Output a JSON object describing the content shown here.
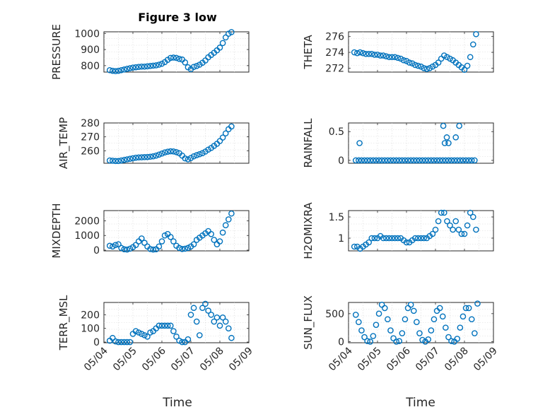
{
  "figure": {
    "title": "Figure 3 low",
    "xlabel": "Time",
    "x_tick_labels": [
      "05/04",
      "05/05",
      "05/06",
      "05/07",
      "05/08",
      "05/09"
    ],
    "marker_color": "#0072bd"
  },
  "chart_data": [
    {
      "type": "scatter",
      "name": "PRESSURE",
      "ylabel": "PRESSURE",
      "title": "Figure 3 low",
      "xlim": [
        0,
        5
      ],
      "ylim": [
        760,
        1010
      ],
      "yticks": [
        800,
        900,
        1000
      ],
      "ytick_labels": [
        "800",
        "900",
        "1000"
      ],
      "grid": true,
      "x": [
        0.2,
        0.3,
        0.4,
        0.5,
        0.6,
        0.7,
        0.8,
        0.9,
        1.0,
        1.1,
        1.2,
        1.3,
        1.4,
        1.5,
        1.6,
        1.7,
        1.8,
        1.9,
        2.0,
        2.1,
        2.2,
        2.3,
        2.4,
        2.5,
        2.6,
        2.7,
        2.8,
        2.9,
        3.0,
        3.1,
        3.2,
        3.3,
        3.4,
        3.5,
        3.6,
        3.7,
        3.8,
        3.9,
        4.0,
        4.1,
        4.2,
        4.3,
        4.4
      ],
      "y": [
        772,
        768,
        766,
        768,
        772,
        776,
        780,
        784,
        788,
        790,
        792,
        794,
        794,
        796,
        798,
        800,
        802,
        806,
        812,
        822,
        836,
        848,
        850,
        848,
        842,
        838,
        820,
        790,
        778,
        792,
        798,
        806,
        818,
        832,
        852,
        866,
        880,
        895,
        912,
        940,
        975,
        998,
        1008
      ]
    },
    {
      "type": "scatter",
      "name": "THETA",
      "ylabel": "THETA",
      "xlim": [
        0,
        5
      ],
      "ylim": [
        271.5,
        276.6
      ],
      "yticks": [
        272,
        274,
        276
      ],
      "ytick_labels": [
        "272",
        "274",
        "276"
      ],
      "grid": true,
      "x": [
        0.2,
        0.3,
        0.4,
        0.5,
        0.6,
        0.7,
        0.8,
        0.9,
        1.0,
        1.1,
        1.2,
        1.3,
        1.4,
        1.5,
        1.6,
        1.7,
        1.8,
        1.9,
        2.0,
        2.1,
        2.2,
        2.3,
        2.4,
        2.5,
        2.6,
        2.7,
        2.8,
        2.9,
        3.0,
        3.1,
        3.2,
        3.3,
        3.4,
        3.5,
        3.6,
        3.7,
        3.8,
        3.9,
        4.0,
        4.1,
        4.2,
        4.3,
        4.4
      ],
      "y": [
        274.0,
        273.9,
        274.0,
        273.9,
        273.8,
        273.8,
        273.8,
        273.7,
        273.7,
        273.6,
        273.6,
        273.5,
        273.4,
        273.4,
        273.4,
        273.3,
        273.2,
        273.0,
        272.9,
        272.7,
        272.6,
        272.4,
        272.3,
        272.2,
        272.0,
        271.9,
        272.0,
        272.2,
        272.4,
        272.7,
        273.2,
        273.6,
        273.4,
        273.2,
        273.0,
        272.7,
        272.4,
        272.1,
        271.8,
        272.3,
        273.4,
        275.0,
        276.3
      ]
    },
    {
      "type": "scatter",
      "name": "AIR_TEMP",
      "ylabel": "AIR_TEMP",
      "xlim": [
        0,
        5
      ],
      "ylim": [
        251,
        280
      ],
      "yticks": [
        260,
        270,
        280
      ],
      "ytick_labels": [
        "260",
        "270",
        "280"
      ],
      "grid": true,
      "x": [
        0.2,
        0.3,
        0.4,
        0.5,
        0.6,
        0.7,
        0.8,
        0.9,
        1.0,
        1.1,
        1.2,
        1.3,
        1.4,
        1.5,
        1.6,
        1.7,
        1.8,
        1.9,
        2.0,
        2.1,
        2.2,
        2.3,
        2.4,
        2.5,
        2.6,
        2.7,
        2.8,
        2.9,
        3.0,
        3.1,
        3.2,
        3.3,
        3.4,
        3.5,
        3.6,
        3.7,
        3.8,
        3.9,
        4.0,
        4.1,
        4.2,
        4.3,
        4.4
      ],
      "y": [
        253.0,
        252.8,
        252.6,
        252.6,
        253.0,
        253.4,
        253.8,
        254.2,
        254.6,
        255.0,
        255.2,
        255.3,
        255.4,
        255.5,
        255.7,
        256.0,
        256.5,
        257.2,
        258.0,
        258.8,
        259.3,
        259.6,
        259.5,
        259.0,
        258.2,
        256.5,
        254.5,
        253.8,
        254.8,
        256.0,
        256.8,
        257.5,
        258.3,
        259.4,
        260.8,
        262.0,
        263.5,
        265.0,
        267.0,
        269.5,
        272.5,
        275.5,
        277.5
      ]
    },
    {
      "type": "scatter",
      "name": "RAINFALL",
      "ylabel": "RAINFALL",
      "xlim": [
        0,
        5
      ],
      "ylim": [
        -0.05,
        0.65
      ],
      "yticks": [
        0,
        0.5
      ],
      "ytick_labels": [
        "0",
        "0.5"
      ],
      "grid": true,
      "x": [
        0.25,
        0.35,
        0.45,
        0.55,
        0.65,
        0.75,
        0.85,
        0.95,
        1.05,
        1.15,
        1.25,
        1.35,
        1.45,
        1.55,
        1.65,
        1.75,
        1.85,
        1.95,
        2.05,
        2.15,
        2.25,
        2.35,
        2.45,
        2.55,
        2.65,
        2.75,
        2.85,
        2.95,
        3.05,
        3.15,
        3.25,
        3.35,
        3.45,
        3.55,
        3.65,
        3.75,
        3.85,
        3.95,
        4.05,
        4.15,
        4.25,
        4.35,
        0.38,
        3.27,
        3.32,
        3.39,
        3.45,
        3.7,
        3.82
      ],
      "y": [
        0,
        0,
        0,
        0,
        0,
        0,
        0,
        0,
        0,
        0,
        0,
        0,
        0,
        0,
        0,
        0,
        0,
        0,
        0,
        0,
        0,
        0,
        0,
        0,
        0,
        0,
        0,
        0,
        0,
        0,
        0,
        0,
        0,
        0,
        0,
        0,
        0,
        0,
        0,
        0,
        0,
        0,
        0.3,
        0.6,
        0.3,
        0.4,
        0.3,
        0.4,
        0.6
      ]
    },
    {
      "type": "scatter",
      "name": "MIXDEPTH",
      "ylabel": "MIXDEPTH",
      "xlim": [
        0,
        5
      ],
      "ylim": [
        -50,
        2700
      ],
      "yticks": [
        0,
        1000,
        2000
      ],
      "ytick_labels": [
        "0",
        "1000",
        "2000"
      ],
      "grid": true,
      "x": [
        0.2,
        0.3,
        0.4,
        0.5,
        0.6,
        0.7,
        0.8,
        0.9,
        1.0,
        1.1,
        1.2,
        1.3,
        1.4,
        1.5,
        1.6,
        1.7,
        1.8,
        1.9,
        2.0,
        2.1,
        2.2,
        2.3,
        2.4,
        2.5,
        2.6,
        2.7,
        2.8,
        2.9,
        3.0,
        3.1,
        3.2,
        3.3,
        3.4,
        3.5,
        3.6,
        3.7,
        3.8,
        3.9,
        4.0,
        4.1,
        4.2,
        4.3,
        4.4
      ],
      "y": [
        300,
        250,
        350,
        400,
        150,
        60,
        40,
        100,
        200,
        350,
        600,
        800,
        500,
        250,
        80,
        40,
        60,
        250,
        600,
        1000,
        1100,
        900,
        600,
        300,
        150,
        80,
        100,
        150,
        250,
        400,
        700,
        850,
        1000,
        1150,
        1300,
        1100,
        700,
        400,
        600,
        1200,
        1700,
        2100,
        2500
      ]
    },
    {
      "type": "scatter",
      "name": "H2OMIXRA",
      "ylabel": "H2OMIXRA",
      "xlim": [
        0,
        5
      ],
      "ylim": [
        0.7,
        1.65
      ],
      "yticks": [
        1,
        1.5
      ],
      "ytick_labels": [
        "1",
        "1.5"
      ],
      "grid": true,
      "x": [
        0.2,
        0.3,
        0.4,
        0.5,
        0.6,
        0.7,
        0.8,
        0.9,
        1.0,
        1.1,
        1.2,
        1.3,
        1.4,
        1.5,
        1.6,
        1.7,
        1.8,
        1.9,
        2.0,
        2.1,
        2.2,
        2.3,
        2.4,
        2.5,
        2.6,
        2.7,
        2.8,
        2.9,
        3.0,
        3.1,
        3.2,
        3.3,
        3.4,
        3.5,
        3.6,
        3.7,
        3.8,
        3.9,
        4.0,
        4.1,
        4.2,
        4.3,
        4.4
      ],
      "y": [
        0.8,
        0.8,
        0.75,
        0.8,
        0.85,
        0.9,
        1.0,
        1.0,
        1.0,
        1.05,
        1.0,
        1.0,
        1.0,
        1.0,
        1.0,
        1.0,
        1.0,
        0.95,
        0.9,
        0.9,
        0.95,
        1.0,
        1.0,
        1.0,
        1.0,
        1.0,
        1.05,
        1.1,
        1.2,
        1.4,
        1.6,
        1.6,
        1.4,
        1.3,
        1.2,
        1.4,
        1.2,
        1.1,
        1.1,
        1.3,
        1.6,
        1.5,
        1.2
      ]
    },
    {
      "type": "scatter",
      "name": "TERR_MSL",
      "ylabel": "TERR_MSL",
      "xlim": [
        0,
        5
      ],
      "ylim": [
        -5,
        290
      ],
      "yticks": [
        0,
        100,
        200
      ],
      "ytick_labels": [
        "0",
        "100",
        "200"
      ],
      "grid": true,
      "x": [
        0.2,
        0.3,
        0.4,
        0.5,
        0.6,
        0.7,
        0.8,
        0.9,
        1.0,
        1.1,
        1.2,
        1.3,
        1.4,
        1.5,
        1.6,
        1.7,
        1.8,
        1.9,
        2.0,
        2.1,
        2.2,
        2.3,
        2.4,
        2.5,
        2.6,
        2.7,
        2.8,
        2.9,
        3.0,
        3.1,
        3.2,
        3.3,
        3.4,
        3.5,
        3.6,
        3.7,
        3.8,
        3.9,
        4.0,
        4.1,
        4.2,
        4.3,
        4.4
      ],
      "y": [
        10,
        30,
        5,
        0,
        0,
        0,
        0,
        0,
        60,
        80,
        70,
        60,
        50,
        40,
        70,
        80,
        100,
        120,
        120,
        120,
        120,
        120,
        80,
        40,
        10,
        0,
        0,
        20,
        200,
        250,
        150,
        50,
        250,
        280,
        230,
        200,
        150,
        180,
        120,
        180,
        150,
        100,
        30
      ]
    },
    {
      "type": "scatter",
      "name": "SUN_FLUX",
      "ylabel": "SUN_FLUX",
      "xlim": [
        0,
        5
      ],
      "ylim": [
        -20,
        700
      ],
      "yticks": [
        0,
        500
      ],
      "ytick_labels": [
        "0",
        "500"
      ],
      "grid": true,
      "x": [
        0.25,
        0.35,
        0.45,
        0.55,
        0.65,
        0.75,
        0.85,
        0.95,
        1.05,
        1.15,
        1.25,
        1.35,
        1.45,
        1.55,
        1.65,
        1.75,
        1.85,
        1.95,
        2.05,
        2.15,
        2.25,
        2.35,
        2.45,
        2.55,
        2.65,
        2.75,
        2.85,
        2.95,
        3.05,
        3.15,
        3.25,
        3.35,
        3.45,
        3.55,
        3.65,
        3.75,
        3.85,
        3.95,
        4.05,
        4.15,
        4.25,
        4.35,
        4.45
      ],
      "y": [
        480,
        350,
        200,
        80,
        10,
        0,
        100,
        300,
        500,
        660,
        600,
        400,
        200,
        60,
        0,
        10,
        150,
        400,
        600,
        660,
        550,
        350,
        150,
        30,
        0,
        40,
        200,
        400,
        550,
        600,
        450,
        250,
        80,
        10,
        0,
        50,
        250,
        450,
        600,
        600,
        400,
        150,
        680
      ]
    }
  ]
}
